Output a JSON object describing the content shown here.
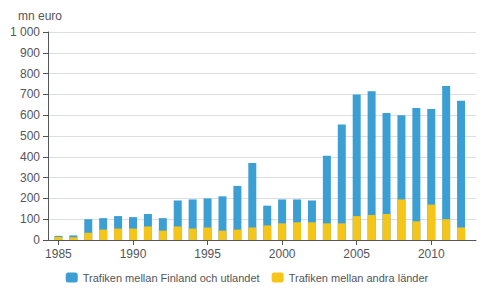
{
  "chart_data": {
    "type": "bar",
    "stacked": true,
    "ylabel": "mn euro",
    "x": [
      1985,
      1986,
      1987,
      1988,
      1989,
      1990,
      1991,
      1992,
      1993,
      1994,
      1995,
      1996,
      1997,
      1998,
      1999,
      2000,
      2001,
      2002,
      2003,
      2004,
      2005,
      2006,
      2007,
      2008,
      2009,
      2010,
      2011,
      2012
    ],
    "series": [
      {
        "name": "Trafiken mellan Finland och utlandet",
        "color": "#3B9FD4",
        "values": [
          20,
          22,
          100,
          105,
          115,
          110,
          125,
          105,
          190,
          195,
          200,
          210,
          260,
          370,
          165,
          195,
          195,
          190,
          405,
          555,
          700,
          715,
          610,
          600,
          635,
          630,
          740,
          670
        ]
      },
      {
        "name": "Trafiken mellan andra länder",
        "color": "#F5C518",
        "values": [
          15,
          13,
          35,
          50,
          55,
          55,
          65,
          45,
          65,
          55,
          60,
          45,
          50,
          60,
          70,
          80,
          85,
          85,
          80,
          80,
          115,
          120,
          125,
          195,
          90,
          170,
          100,
          60
        ]
      }
    ],
    "xlim": [
      1984.3,
      2013.0
    ],
    "xticks": [
      1985,
      1990,
      1995,
      2000,
      2005,
      2010
    ],
    "ylim": [
      0,
      1000
    ],
    "yticks": [
      0,
      100,
      200,
      300,
      400,
      500,
      600,
      700,
      800,
      900,
      {
        "value": 1000,
        "label": "1 000"
      }
    ],
    "grid": true,
    "legend": "bottom"
  }
}
